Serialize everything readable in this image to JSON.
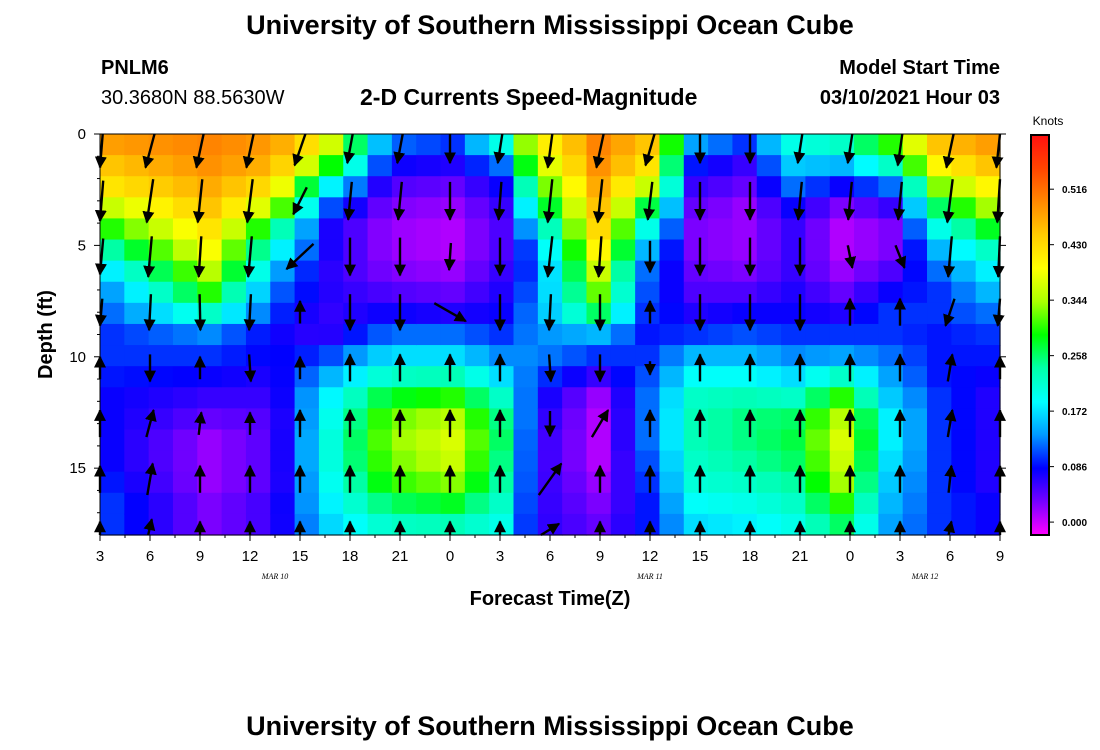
{
  "header": {
    "title_top": "University of Southern Mississippi Ocean Cube",
    "title_bottom": "University of Southern Mississippi Ocean Cube",
    "station_id": "PNLM6",
    "station_coords": "30.3680N 88.5630W",
    "model_start_label": "Model Start Time",
    "model_start_value": "03/10/2021 Hour 03"
  },
  "chart_data": {
    "type": "heatmap",
    "title": "2-D Currents Speed-Magnitude",
    "xlabel": "Forecast Time(Z)",
    "ylabel": "Depth (ft)",
    "x_ticks": [
      "3",
      "6",
      "9",
      "12",
      "15",
      "18",
      "21",
      "0",
      "3",
      "6",
      "9",
      "12",
      "15",
      "18",
      "21",
      "0",
      "3",
      "6",
      "9"
    ],
    "x_hours_from_start": [
      0,
      3,
      6,
      9,
      12,
      15,
      18,
      21,
      24,
      27,
      30,
      33,
      36,
      39,
      42,
      45,
      48,
      51,
      54
    ],
    "date_labels": [
      {
        "text": "MAR 10",
        "at_hours": 10.5
      },
      {
        "text": "MAR 11",
        "at_hours": 33
      },
      {
        "text": "MAR 12",
        "at_hours": 49.5
      }
    ],
    "y_ticks": [
      0,
      5,
      10,
      15
    ],
    "ylim": [
      0,
      18
    ],
    "xlim": [
      0,
      54
    ],
    "colorbar": {
      "unit": "Knots",
      "ticks": [
        "0.516",
        "0.430",
        "0.344",
        "0.258",
        "0.172",
        "0.086",
        "0.000"
      ],
      "tick_values": [
        0.516,
        0.43,
        0.344,
        0.258,
        0.172,
        0.086,
        0.0
      ],
      "range": [
        -0.02,
        0.6
      ],
      "stops": [
        "#ff1010",
        "#ff4400",
        "#ff8800",
        "#ffcc00",
        "#ffff00",
        "#aaff00",
        "#00ff00",
        "#00ffaa",
        "#00ffff",
        "#0099ff",
        "#0000ff",
        "#7700ff",
        "#ff00ff"
      ]
    },
    "grid_hours": [
      0,
      1.5,
      3,
      4.5,
      6,
      7.5,
      9,
      10.5,
      12,
      13.5,
      15,
      16.5,
      18,
      19.5,
      21,
      22.5,
      24,
      25.5,
      27,
      28.5,
      30,
      31.5,
      33,
      34.5,
      36,
      37.5,
      39,
      40.5,
      42,
      43.5,
      45,
      46.5,
      48,
      49.5,
      51,
      52.5,
      54
    ],
    "grid_depths_ft": [
      0,
      1,
      2,
      3,
      4,
      5,
      6,
      7,
      8,
      9,
      10,
      11,
      12,
      13,
      14,
      15,
      16,
      17,
      18
    ],
    "depth_profiles_knots": [
      {
        "hour": 0,
        "values": [
          0.48,
          0.45,
          0.42,
          0.36,
          0.3,
          0.24,
          0.18,
          0.14,
          0.12,
          0.1,
          0.1,
          0.09,
          0.08,
          0.08,
          0.08,
          0.08,
          0.09,
          0.1,
          0.1
        ]
      },
      {
        "hour": 6,
        "values": [
          0.5,
          0.49,
          0.47,
          0.45,
          0.42,
          0.39,
          0.35,
          0.3,
          0.22,
          0.13,
          0.1,
          0.08,
          0.06,
          0.04,
          0.02,
          0.02,
          0.02,
          0.03,
          0.03
        ]
      },
      {
        "hour": 10,
        "values": [
          0.48,
          0.46,
          0.42,
          0.35,
          0.26,
          0.2,
          0.15,
          0.12,
          0.1,
          0.08,
          0.08,
          0.07,
          0.06,
          0.05,
          0.05,
          0.05,
          0.05,
          0.06,
          0.06
        ]
      },
      {
        "hour": 13,
        "values": [
          0.4,
          0.32,
          0.2,
          0.12,
          0.08,
          0.08,
          0.07,
          0.07,
          0.06,
          0.06,
          0.1,
          0.14,
          0.17,
          0.18,
          0.19,
          0.19,
          0.18,
          0.17,
          0.16
        ]
      },
      {
        "hour": 17,
        "values": [
          0.12,
          0.08,
          0.05,
          0.03,
          0.02,
          0.02,
          0.03,
          0.05,
          0.08,
          0.12,
          0.17,
          0.22,
          0.28,
          0.32,
          0.33,
          0.32,
          0.3,
          0.26,
          0.22
        ]
      },
      {
        "hour": 21,
        "values": [
          0.1,
          0.07,
          0.04,
          0.02,
          0.01,
          0.01,
          0.02,
          0.04,
          0.07,
          0.12,
          0.17,
          0.23,
          0.3,
          0.35,
          0.37,
          0.36,
          0.33,
          0.28,
          0.23
        ]
      },
      {
        "hour": 24,
        "values": [
          0.2,
          0.12,
          0.08,
          0.06,
          0.05,
          0.05,
          0.06,
          0.07,
          0.08,
          0.1,
          0.13,
          0.17,
          0.22,
          0.25,
          0.26,
          0.25,
          0.24,
          0.22,
          0.2
        ]
      },
      {
        "hour": 26,
        "values": [
          0.38,
          0.34,
          0.28,
          0.22,
          0.16,
          0.12,
          0.11,
          0.12,
          0.13,
          0.13,
          0.13,
          0.11,
          0.09,
          0.08,
          0.07,
          0.07,
          0.07,
          0.07,
          0.07
        ]
      },
      {
        "hour": 30,
        "values": [
          0.5,
          0.49,
          0.47,
          0.45,
          0.43,
          0.4,
          0.36,
          0.32,
          0.26,
          0.15,
          0.1,
          0.06,
          0.02,
          0.01,
          0.01,
          0.01,
          0.02,
          0.03,
          0.04
        ]
      },
      {
        "hour": 33,
        "values": [
          0.45,
          0.42,
          0.36,
          0.27,
          0.2,
          0.15,
          0.12,
          0.11,
          0.1,
          0.09,
          0.1,
          0.11,
          0.12,
          0.12,
          0.12,
          0.11,
          0.1,
          0.09,
          0.09
        ]
      },
      {
        "hour": 36,
        "values": [
          0.14,
          0.09,
          0.06,
          0.04,
          0.03,
          0.03,
          0.04,
          0.05,
          0.07,
          0.1,
          0.15,
          0.19,
          0.22,
          0.23,
          0.23,
          0.22,
          0.21,
          0.19,
          0.17
        ]
      },
      {
        "hour": 39,
        "values": [
          0.1,
          0.06,
          0.04,
          0.02,
          0.02,
          0.02,
          0.03,
          0.05,
          0.08,
          0.11,
          0.15,
          0.19,
          0.23,
          0.25,
          0.25,
          0.24,
          0.22,
          0.2,
          0.18
        ]
      },
      {
        "hour": 42,
        "values": [
          0.2,
          0.16,
          0.12,
          0.08,
          0.06,
          0.06,
          0.06,
          0.07,
          0.08,
          0.1,
          0.13,
          0.17,
          0.22,
          0.26,
          0.27,
          0.26,
          0.24,
          0.22,
          0.2
        ]
      },
      {
        "hour": 45,
        "values": [
          0.22,
          0.15,
          0.08,
          0.03,
          0.01,
          0.01,
          0.02,
          0.04,
          0.07,
          0.1,
          0.14,
          0.22,
          0.3,
          0.35,
          0.37,
          0.36,
          0.34,
          0.3,
          0.26
        ]
      },
      {
        "hour": 48,
        "values": [
          0.3,
          0.22,
          0.12,
          0.06,
          0.03,
          0.03,
          0.05,
          0.08,
          0.1,
          0.1,
          0.12,
          0.14,
          0.16,
          0.18,
          0.18,
          0.17,
          0.16,
          0.15,
          0.14
        ]
      },
      {
        "hour": 51,
        "values": [
          0.45,
          0.4,
          0.33,
          0.26,
          0.2,
          0.15,
          0.12,
          0.1,
          0.1,
          0.09,
          0.09,
          0.09,
          0.1,
          0.1,
          0.1,
          0.1,
          0.1,
          0.1,
          0.1
        ]
      },
      {
        "hour": 54,
        "values": [
          0.48,
          0.45,
          0.4,
          0.34,
          0.28,
          0.22,
          0.18,
          0.15,
          0.12,
          0.1,
          0.09,
          0.08,
          0.07,
          0.07,
          0.07,
          0.07,
          0.07,
          0.08,
          0.08
        ]
      }
    ],
    "vector_hours": [
      0,
      3,
      6,
      9,
      12,
      15,
      18,
      21,
      24,
      27,
      30,
      33,
      36,
      39,
      42,
      45,
      48,
      51,
      54
    ],
    "vector_depths_ft": [
      0.5,
      3,
      5.5,
      8,
      10.5,
      13,
      15.5,
      18
    ],
    "vector_columns": [
      {
        "hour": 0,
        "u": [
          -0.06,
          -0.07,
          -0.07,
          -0.05,
          0.0,
          0.0,
          0.0,
          0.0
        ],
        "v": [
          -0.5,
          -0.45,
          -0.4,
          -0.3,
          0.25,
          0.3,
          0.3,
          0.3
        ]
      },
      {
        "hour": 3,
        "u": [
          -0.1,
          -0.07,
          -0.04,
          -0.02,
          0.0,
          0.08,
          0.06,
          0.04
        ],
        "v": [
          -0.5,
          -0.48,
          -0.45,
          -0.4,
          -0.3,
          0.3,
          0.35,
          0.35
        ]
      },
      {
        "hour": 6,
        "u": [
          -0.08,
          -0.05,
          -0.03,
          0.01,
          0.0,
          0.03,
          0.0,
          0.0
        ],
        "v": [
          -0.5,
          -0.48,
          -0.45,
          -0.4,
          0.25,
          0.25,
          0.3,
          0.3
        ]
      },
      {
        "hour": 9,
        "u": [
          -0.08,
          -0.06,
          -0.04,
          -0.02,
          0.02,
          0.0,
          0.0,
          0.0
        ],
        "v": [
          -0.5,
          -0.48,
          -0.45,
          -0.4,
          -0.3,
          0.25,
          0.3,
          0.3
        ]
      },
      {
        "hour": 12,
        "u": [
          -0.12,
          -0.15,
          -0.3,
          0.0,
          0.0,
          0.0,
          0.0,
          0.0
        ],
        "v": [
          -0.45,
          -0.3,
          -0.28,
          0.25,
          0.25,
          0.3,
          0.3,
          0.3
        ]
      },
      {
        "hour": 15,
        "u": [
          -0.06,
          -0.04,
          0.0,
          0.0,
          0.0,
          0.0,
          0.0,
          0.0
        ],
        "v": [
          -0.4,
          -0.42,
          -0.42,
          -0.4,
          0.3,
          0.3,
          0.3,
          0.3
        ]
      },
      {
        "hour": 18,
        "u": [
          -0.06,
          -0.04,
          0.0,
          0.0,
          0.0,
          0.0,
          0.0,
          0.0
        ],
        "v": [
          -0.4,
          -0.42,
          -0.42,
          -0.4,
          0.3,
          0.3,
          0.3,
          0.3
        ]
      },
      {
        "hour": 21,
        "u": [
          0.0,
          0.0,
          -0.02,
          0.35,
          0.0,
          0.0,
          0.0,
          0.0
        ],
        "v": [
          -0.4,
          -0.42,
          -0.3,
          -0.2,
          0.3,
          0.3,
          0.3,
          0.3
        ]
      },
      {
        "hour": 24,
        "u": [
          -0.05,
          -0.03,
          0.0,
          0.0,
          0.0,
          0.0,
          0.0,
          0.0
        ],
        "v": [
          -0.4,
          -0.42,
          -0.42,
          -0.4,
          0.3,
          0.3,
          0.3,
          0.3
        ]
      },
      {
        "hour": 27,
        "u": [
          -0.05,
          -0.05,
          -0.05,
          -0.02,
          0.02,
          0.0,
          0.25,
          0.2
        ],
        "v": [
          -0.5,
          -0.48,
          -0.45,
          -0.4,
          -0.3,
          -0.28,
          0.35,
          0.25
        ]
      },
      {
        "hour": 30,
        "u": [
          -0.08,
          -0.05,
          -0.03,
          0.0,
          0.0,
          0.18,
          0.0,
          0.0
        ],
        "v": [
          -0.5,
          -0.48,
          -0.45,
          -0.4,
          -0.3,
          0.3,
          0.3,
          0.3
        ]
      },
      {
        "hour": 33,
        "u": [
          -0.1,
          -0.05,
          0.0,
          0.0,
          0.0,
          0.0,
          0.0,
          0.0
        ],
        "v": [
          -0.45,
          -0.42,
          -0.35,
          0.25,
          -0.15,
          0.3,
          0.3,
          0.3
        ]
      },
      {
        "hour": 36,
        "u": [
          0.0,
          0.0,
          0.0,
          0.0,
          0.0,
          0.0,
          0.0,
          0.0
        ],
        "v": [
          -0.4,
          -0.42,
          -0.42,
          -0.4,
          0.3,
          0.3,
          0.3,
          0.3
        ]
      },
      {
        "hour": 39,
        "u": [
          0.0,
          0.0,
          0.0,
          0.0,
          0.0,
          0.0,
          0.0,
          0.0
        ],
        "v": [
          -0.4,
          -0.42,
          -0.42,
          -0.4,
          0.3,
          0.3,
          0.3,
          0.3
        ]
      },
      {
        "hour": 42,
        "u": [
          -0.05,
          -0.04,
          0.0,
          0.0,
          0.0,
          0.0,
          0.0,
          0.0
        ],
        "v": [
          -0.4,
          -0.42,
          -0.42,
          -0.4,
          0.3,
          0.3,
          0.3,
          0.3
        ]
      },
      {
        "hour": 45,
        "u": [
          -0.05,
          -0.04,
          0.05,
          0.0,
          0.0,
          0.0,
          0.0,
          0.0
        ],
        "v": [
          -0.4,
          -0.42,
          -0.25,
          0.3,
          0.3,
          0.3,
          0.3,
          0.3
        ]
      },
      {
        "hour": 48,
        "u": [
          -0.05,
          -0.04,
          0.1,
          0.0,
          0.0,
          0.0,
          0.0,
          0.0
        ],
        "v": [
          -0.45,
          -0.42,
          -0.25,
          0.3,
          0.3,
          0.3,
          0.3,
          0.3
        ]
      },
      {
        "hour": 51,
        "u": [
          -0.08,
          -0.06,
          -0.04,
          -0.1,
          0.05,
          0.05,
          0.03,
          0.03
        ],
        "v": [
          -0.5,
          -0.48,
          -0.45,
          -0.3,
          0.3,
          0.3,
          0.3,
          0.3
        ]
      },
      {
        "hour": 54,
        "u": [
          -0.08,
          -0.06,
          -0.04,
          -0.05,
          0.0,
          0.0,
          0.0,
          0.0
        ],
        "v": [
          -0.5,
          -0.48,
          -0.45,
          -0.3,
          0.25,
          0.3,
          0.3,
          0.3
        ]
      }
    ]
  }
}
